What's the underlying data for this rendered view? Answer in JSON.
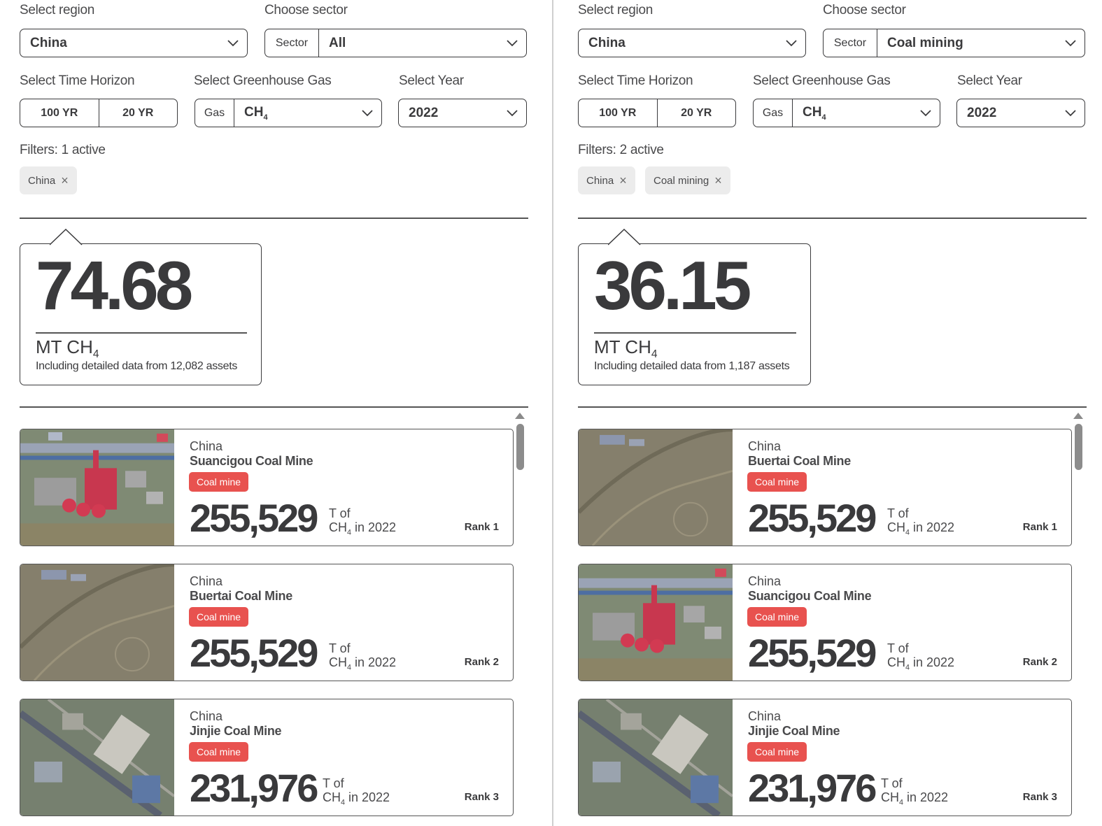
{
  "panels": [
    {
      "labels": {
        "region": "Select region",
        "sector": "Choose sector",
        "horizon": "Select Time Horizon",
        "gas": "Select Greenhouse Gas",
        "year": "Select Year"
      },
      "region_value": "China",
      "sector_prefix": "Sector",
      "sector_value": "All",
      "horizon_options": [
        "100 YR",
        "20 YR"
      ],
      "gas_prefix": "Gas",
      "gas_value": "CH",
      "gas_sub": "4",
      "year_value": "2022",
      "filters_label": "Filters: 1 active",
      "chips": [
        "China"
      ],
      "total_value": "74.68",
      "total_unit": "MT CH",
      "total_unit_sub": "4",
      "assets_note": "Including detailed data from 12,082 assets",
      "assets": [
        {
          "country": "China",
          "name": "Suancigou Coal Mine",
          "badge": "Coal mine",
          "value": "255,529",
          "unit_top": "T of",
          "unit_bottom": "CH",
          "unit_sub": "4",
          "unit_suffix": " in 2022",
          "rank": "Rank 1",
          "thumb": "industrial"
        },
        {
          "country": "China",
          "name": "Buertai Coal Mine",
          "badge": "Coal mine",
          "value": "255,529",
          "unit_top": "T of",
          "unit_bottom": "CH",
          "unit_sub": "4",
          "unit_suffix": " in 2022",
          "rank": "Rank 2",
          "thumb": "terrain"
        },
        {
          "country": "China",
          "name": "Jinjie Coal Mine",
          "badge": "Coal mine",
          "value": "231,976",
          "unit_top": "T of",
          "unit_bottom": "CH",
          "unit_sub": "4",
          "unit_suffix": " in 2022",
          "rank": "Rank 3",
          "thumb": "urban"
        }
      ]
    },
    {
      "labels": {
        "region": "Select region",
        "sector": "Choose sector",
        "horizon": "Select Time Horizon",
        "gas": "Select Greenhouse Gas",
        "year": "Select Year"
      },
      "region_value": "China",
      "sector_prefix": "Sector",
      "sector_value": "Coal mining",
      "horizon_options": [
        "100 YR",
        "20 YR"
      ],
      "gas_prefix": "Gas",
      "gas_value": "CH",
      "gas_sub": "4",
      "year_value": "2022",
      "filters_label": "Filters: 2 active",
      "chips": [
        "China",
        "Coal mining"
      ],
      "total_value": "36.15",
      "total_unit": "MT CH",
      "total_unit_sub": "4",
      "assets_note": "Including detailed data from 1,187 assets",
      "assets": [
        {
          "country": "China",
          "name": "Buertai Coal Mine",
          "badge": "Coal mine",
          "value": "255,529",
          "unit_top": "T of",
          "unit_bottom": "CH",
          "unit_sub": "4",
          "unit_suffix": " in 2022",
          "rank": "Rank 1",
          "thumb": "terrain"
        },
        {
          "country": "China",
          "name": "Suancigou Coal Mine",
          "badge": "Coal mine",
          "value": "255,529",
          "unit_top": "T of",
          "unit_bottom": "CH",
          "unit_sub": "4",
          "unit_suffix": " in 2022",
          "rank": "Rank 2",
          "thumb": "industrial"
        },
        {
          "country": "China",
          "name": "Jinjie Coal Mine",
          "badge": "Coal mine",
          "value": "231,976",
          "unit_top": "T of",
          "unit_bottom": "CH",
          "unit_sub": "4",
          "unit_suffix": " in 2022",
          "rank": "Rank 3",
          "thumb": "urban"
        }
      ]
    }
  ],
  "colors": {
    "badge": "#e8524f",
    "text": "#3a3a3c",
    "chip": "#ececec"
  },
  "icons": {
    "dropdown": "chevron-down-icon",
    "chip_remove": "close-icon",
    "scroll": "scroll-up-icon"
  }
}
